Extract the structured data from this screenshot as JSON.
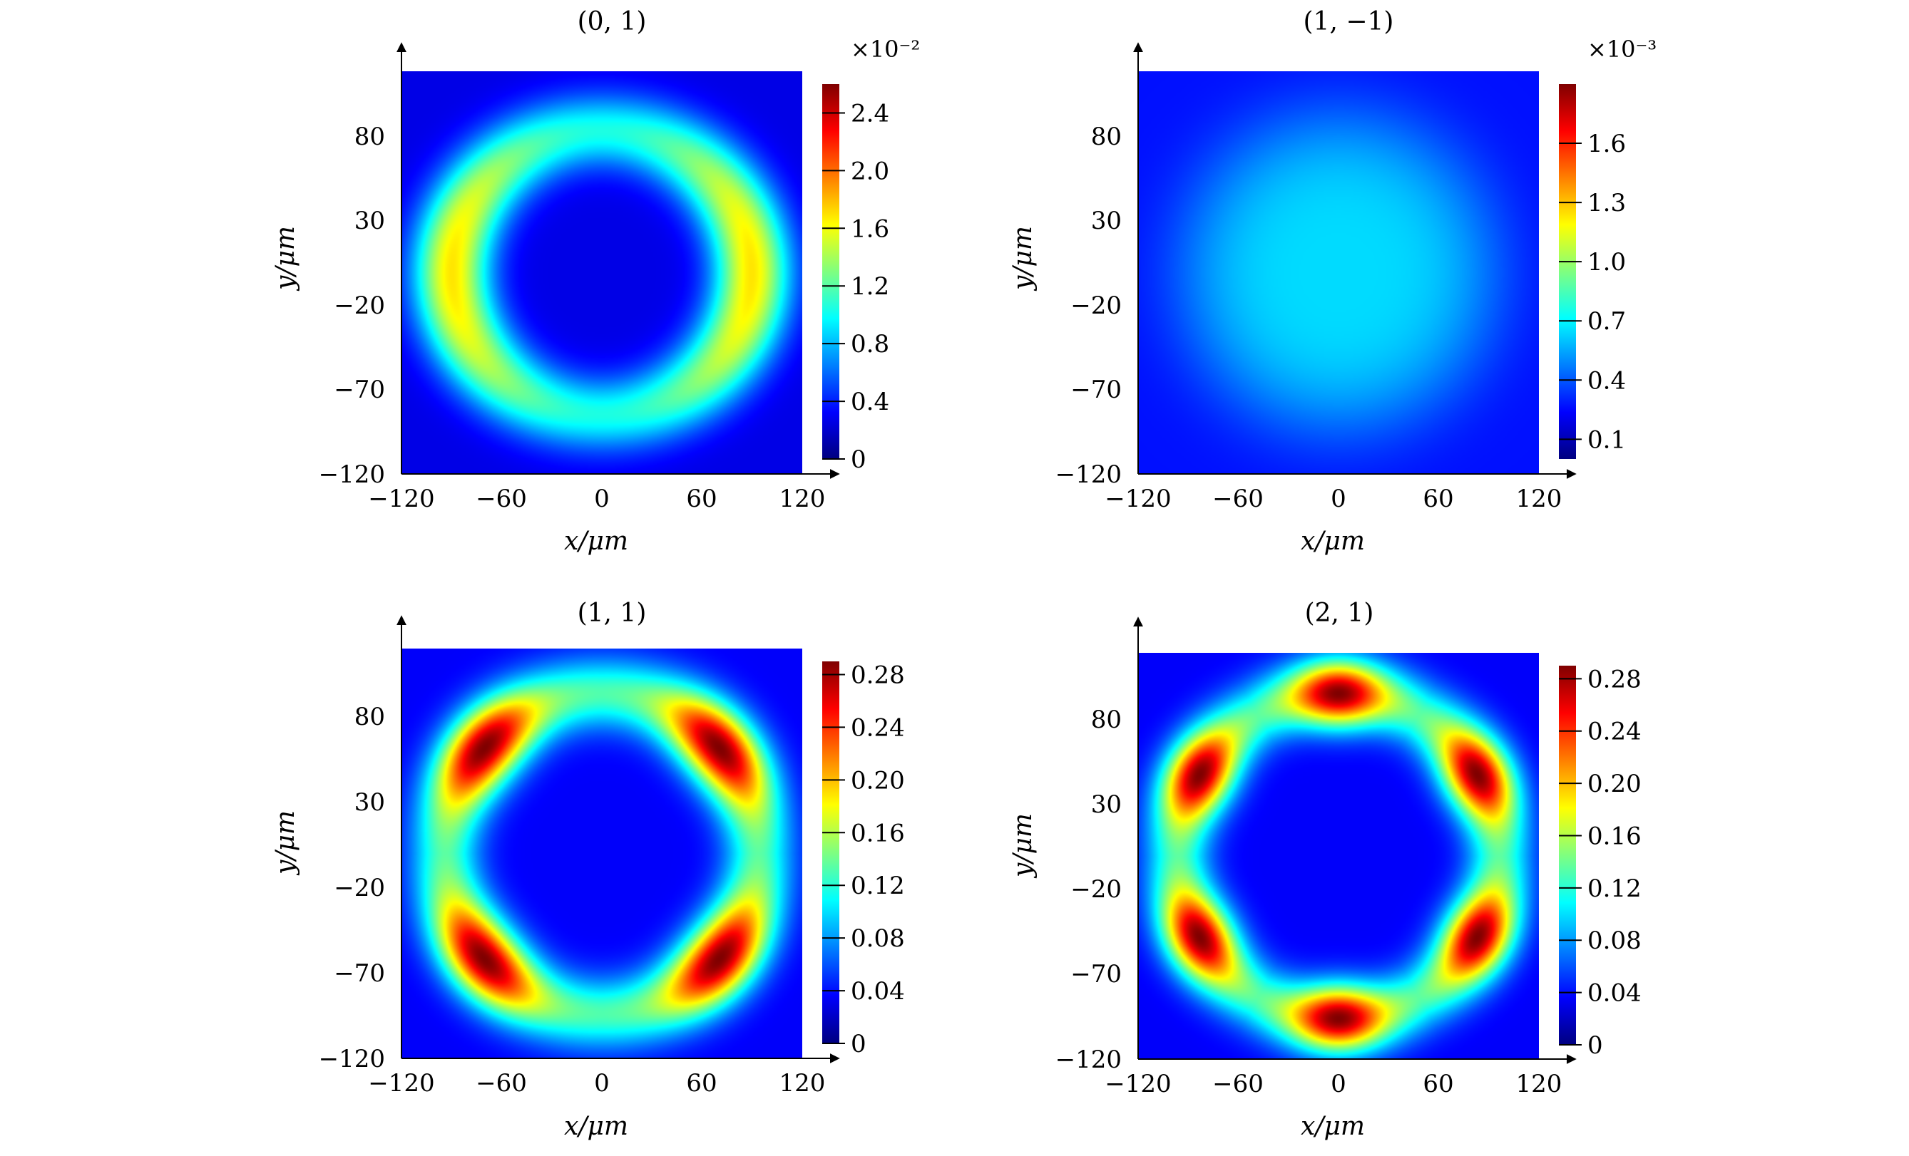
{
  "chart_data": [
    {
      "type": "heatmap",
      "title": "(0, 1)",
      "xlabel": "x/μm",
      "ylabel": "y/μm",
      "x_ticks": [
        "−120",
        "−60",
        "0",
        "60",
        "120"
      ],
      "y_ticks": [
        "80",
        "30",
        "−20",
        "−70",
        "−120"
      ],
      "xlim": [
        -120,
        120
      ],
      "ylim": [
        -120,
        120
      ],
      "colormap": "jet",
      "colorbar": {
        "scale": "×10⁻²",
        "ticks": [
          "2.4",
          "2.0",
          "1.6",
          "1.2",
          "0.8",
          "0.4",
          "0"
        ],
        "range": [
          0,
          2.6
        ]
      },
      "pattern": "ellipse ring (one horizontal lobe pair)"
    },
    {
      "type": "heatmap",
      "title": "(1, −1)",
      "xlabel": "x/μm",
      "ylabel": "y/μm",
      "x_ticks": [
        "−120",
        "−60",
        "0",
        "60",
        "120"
      ],
      "y_ticks": [
        "80",
        "30",
        "−20",
        "−70",
        "−120"
      ],
      "xlim": [
        -120,
        120
      ],
      "ylim": [
        -120,
        120
      ],
      "colormap": "jet",
      "colorbar": {
        "scale": "×10⁻³",
        "ticks": [
          "1.6",
          "1.3",
          "1.0",
          "0.7",
          "0.4",
          "0.1"
        ],
        "range": [
          0,
          1.9
        ]
      },
      "pattern": "broad diffuse disc"
    },
    {
      "type": "heatmap",
      "title": "(1, 1)",
      "xlabel": "x/μm",
      "ylabel": "y/μm",
      "x_ticks": [
        "−120",
        "−60",
        "0",
        "60",
        "120"
      ],
      "y_ticks": [
        "80",
        "30",
        "−20",
        "−70",
        "−120"
      ],
      "xlim": [
        -120,
        120
      ],
      "ylim": [
        -120,
        120
      ],
      "colormap": "jet",
      "colorbar": {
        "scale": "",
        "ticks": [
          "0.28",
          "0.24",
          "0.20",
          "0.16",
          "0.12",
          "0.08",
          "0.04",
          "0"
        ],
        "range": [
          0,
          0.29
        ]
      },
      "pattern": "ring with 4 lobes"
    },
    {
      "type": "heatmap",
      "title": "(2, 1)",
      "xlabel": "x/μm",
      "ylabel": "y/μm",
      "x_ticks": [
        "−120",
        "−60",
        "0",
        "60",
        "120"
      ],
      "y_ticks": [
        "80",
        "30",
        "−20",
        "−70",
        "−120"
      ],
      "xlim": [
        -120,
        120
      ],
      "ylim": [
        -120,
        120
      ],
      "colormap": "jet",
      "colorbar": {
        "scale": "",
        "ticks": [
          "0.28",
          "0.24",
          "0.20",
          "0.16",
          "0.12",
          "0.08",
          "0.04",
          "0"
        ],
        "range": [
          0,
          0.29
        ]
      },
      "pattern": "ring with 6 lobes"
    }
  ]
}
